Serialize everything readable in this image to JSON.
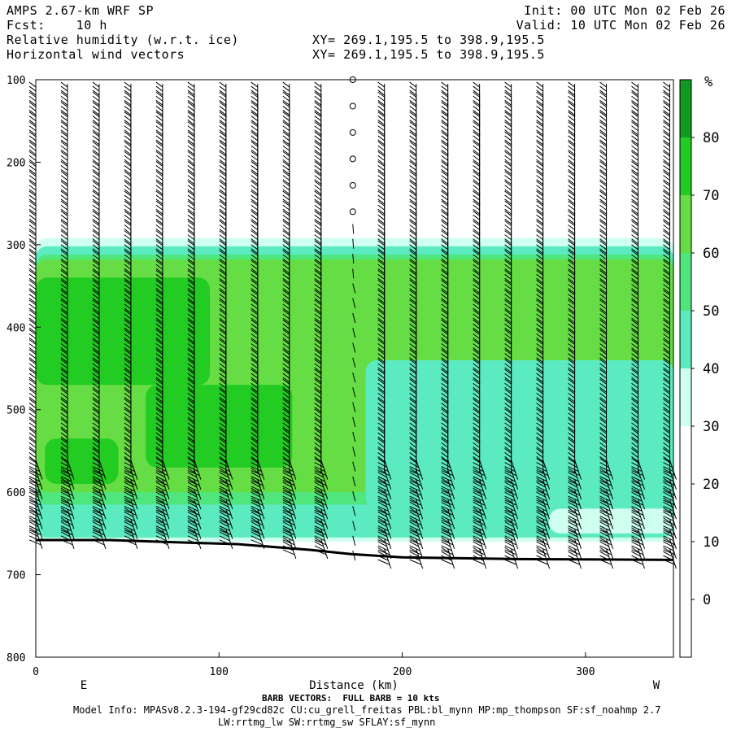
{
  "header": {
    "model": "AMPS 2.67-km WRF SP",
    "fcst_label": "Fcst:",
    "fcst_value": "10 h",
    "field1": "Relative humidity (w.r.t. ice)",
    "field2": "Horizontal wind vectors",
    "xy1": "XY= 269.1,195.5 to 398.9,195.5",
    "xy2": "XY= 269.1,195.5 to 398.9,195.5",
    "init": "Init: 00 UTC Mon 02 Feb 26",
    "valid": "Valid: 10 UTC Mon 02 Feb 26"
  },
  "footer": {
    "barb_note": "BARB VECTORS:  FULL BARB = 10 kts",
    "model_info": "Model Info: MPASv8.2.3-194-gf29cd82c CU:cu_grell_freitas PBL:bl_mynn MP:mp_thompson SF:sf_noahmp 2.7",
    "model_info2": "LW:rrtmg_lw SW:rrtmg_sw SFLAY:sf_mynn"
  },
  "chart_data": {
    "type": "heatmap",
    "title": "Relative humidity (w.r.t. ice)",
    "xlabel": "Distance (km)",
    "ylabel": "",
    "x_tick_labels": [
      "0",
      "100",
      "200",
      "300"
    ],
    "x_ticks": [
      0,
      100,
      200,
      300
    ],
    "xlim": [
      0,
      348
    ],
    "y_tick_labels": [
      "100",
      "200",
      "300",
      "400",
      "500",
      "600",
      "700",
      "800"
    ],
    "y_ticks": [
      100,
      200,
      300,
      400,
      500,
      600,
      700,
      800
    ],
    "ylim": [
      100,
      800
    ],
    "y_inverted": true,
    "end_labels": {
      "left": "E",
      "right": "W"
    },
    "colorbar": {
      "unit": "%",
      "tick_labels": [
        "80",
        "70",
        "60",
        "50",
        "40",
        "30",
        "20",
        "10",
        "0"
      ],
      "levels": [
        {
          "lo": 30,
          "hi": 40,
          "color": "#cffff0"
        },
        {
          "lo": 40,
          "hi": 50,
          "color": "#5cebc0"
        },
        {
          "lo": 50,
          "hi": 60,
          "color": "#4fe67d"
        },
        {
          "lo": 60,
          "hi": 70,
          "color": "#66dd44"
        },
        {
          "lo": 70,
          "hi": 80,
          "color": "#22cc22"
        },
        {
          "lo": 80,
          "hi": 90,
          "color": "#119922"
        }
      ]
    },
    "terrain_pressure": [
      [
        0,
        658
      ],
      [
        40,
        658
      ],
      [
        80,
        661
      ],
      [
        110,
        663
      ],
      [
        150,
        670
      ],
      [
        172,
        675
      ],
      [
        200,
        679
      ],
      [
        260,
        681
      ],
      [
        348,
        682
      ]
    ],
    "moist_layer_top": [
      [
        0,
        292
      ],
      [
        100,
        294
      ],
      [
        200,
        292
      ],
      [
        348,
        290
      ]
    ],
    "regions": [
      {
        "level": 30,
        "x0": 0,
        "x1": 348,
        "p0": 292,
        "p1": 660
      },
      {
        "level": 40,
        "x0": 0,
        "x1": 348,
        "p0": 302,
        "p1": 655
      },
      {
        "level": 50,
        "x0": 0,
        "x1": 348,
        "p0": 312,
        "p1": 615
      },
      {
        "level": 60,
        "x0": 0,
        "x1": 348,
        "p0": 318,
        "p1": 600
      },
      {
        "level": 70,
        "x0": 0,
        "x1": 95,
        "p0": 340,
        "p1": 470
      },
      {
        "level": 70,
        "x0": 5,
        "x1": 45,
        "p0": 535,
        "p1": 590
      },
      {
        "level": 70,
        "x0": 60,
        "x1": 140,
        "p0": 470,
        "p1": 570
      },
      {
        "level": 40,
        "x0": 180,
        "x1": 348,
        "p0": 440,
        "p1": 620
      },
      {
        "level": 30,
        "x0": 280,
        "x1": 348,
        "p0": 620,
        "p1": 650
      }
    ],
    "barb_columns_km": [
      0,
      17.3,
      34.6,
      51.9,
      69.2,
      86.5,
      103.8,
      121.1,
      138.4,
      155.7,
      173,
      190.3,
      207.6,
      224.9,
      242.2,
      259.5,
      276.8,
      294.1,
      311.4,
      328.7,
      346
    ],
    "barb_note": "FULL BARB = 10 kts"
  }
}
